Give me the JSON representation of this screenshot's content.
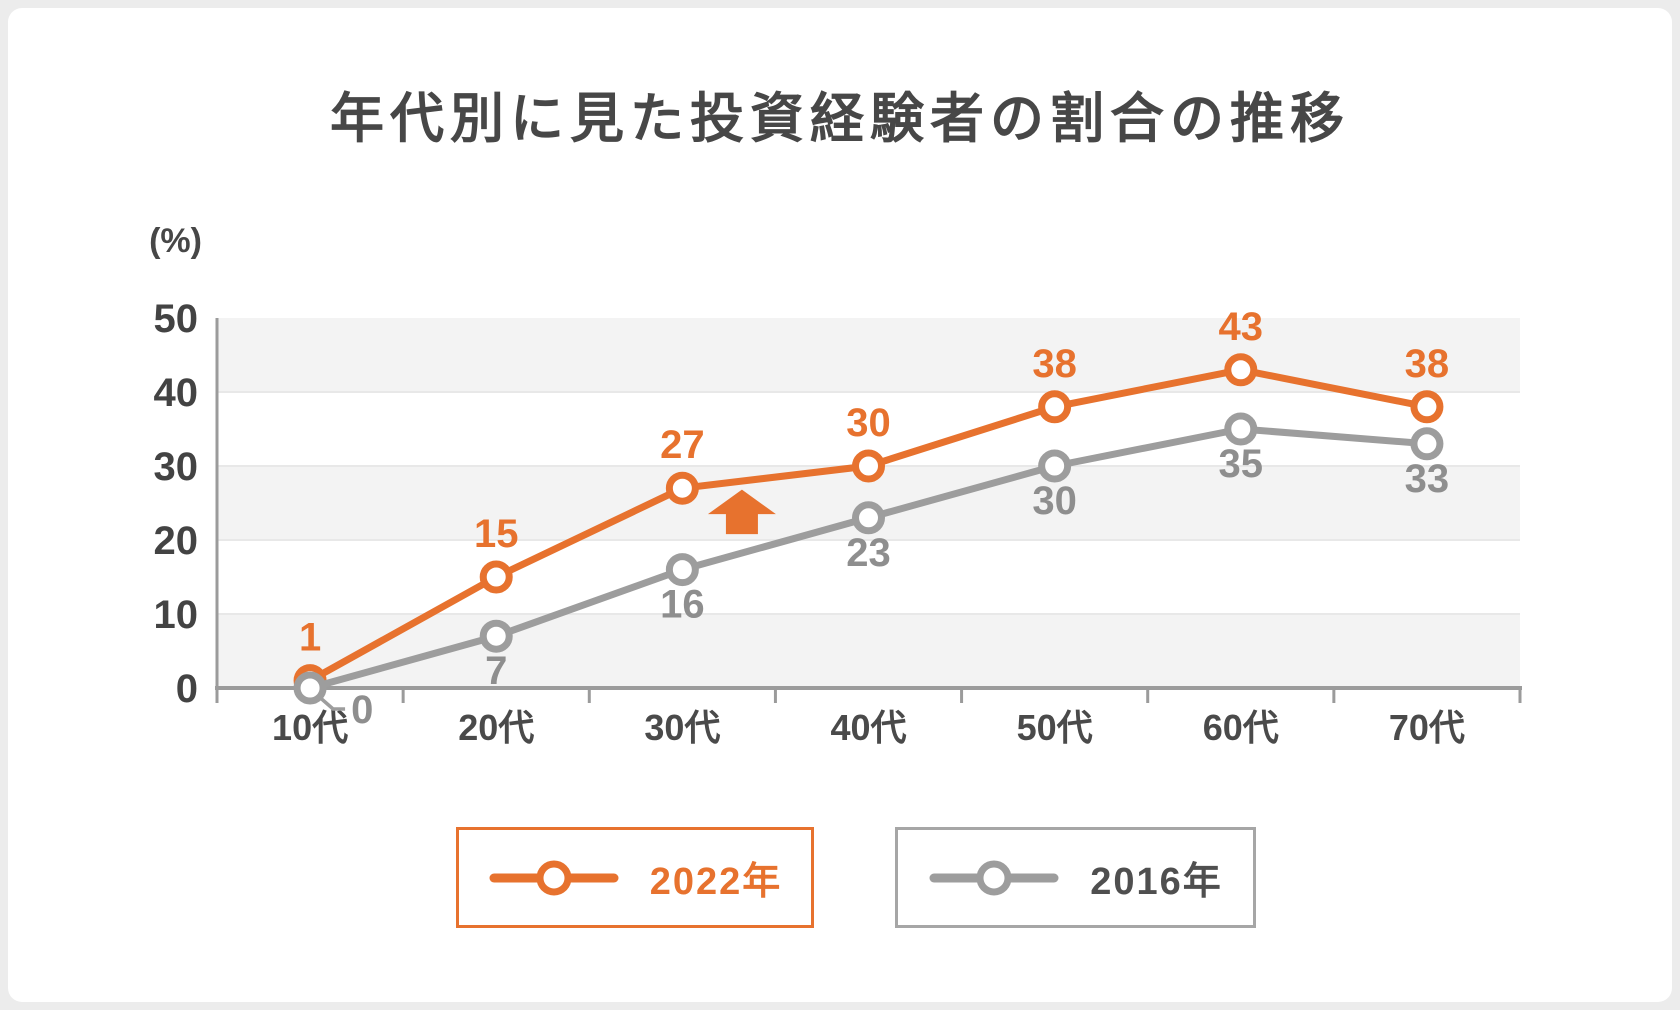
{
  "page": {
    "background_color": "#ECECEC",
    "card_color": "#FFFFFF"
  },
  "chart_data": {
    "type": "line",
    "title": "年代別に見た投資経験者の割合の推移",
    "unit_label": "(%)",
    "xlabel": "",
    "ylabel": "(%)",
    "categories": [
      "10代",
      "20代",
      "30代",
      "40代",
      "50代",
      "60代",
      "70代"
    ],
    "y_ticks": [
      0,
      10,
      20,
      30,
      40,
      50
    ],
    "ylim": [
      0,
      50
    ],
    "grid": "horizontal-bands",
    "band_color": "#F3F3F3",
    "gridline_color": "#E8E8E8",
    "axis_color": "#9B9B9B",
    "legend_position": "bottom",
    "series": [
      {
        "name": "2022年",
        "color": "#E7722E",
        "label_color": "#E7722E",
        "values": [
          1,
          15,
          27,
          30,
          38,
          43,
          38
        ],
        "label_position": "above"
      },
      {
        "name": "2016年",
        "color": "#9D9D9D",
        "label_color": "#8E8E8E",
        "values": [
          0,
          7,
          16,
          23,
          30,
          35,
          33
        ],
        "label_position": "below",
        "first_label_leader": true
      }
    ],
    "annotations": [
      {
        "type": "up-arrow",
        "color": "#E7722E",
        "x_index": 2.32,
        "value_apex": 26.8,
        "value_head_base": 23.5,
        "value_bottom": 20.8
      }
    ]
  },
  "legend": {
    "items": [
      {
        "label": "2022年",
        "line_color": "#E7722E",
        "text_color": "#E7722E",
        "border_color": "#E7722E"
      },
      {
        "label": "2016年",
        "line_color": "#9D9D9D",
        "text_color": "#4F4F4F",
        "border_color": "#A6A6A6"
      }
    ]
  }
}
